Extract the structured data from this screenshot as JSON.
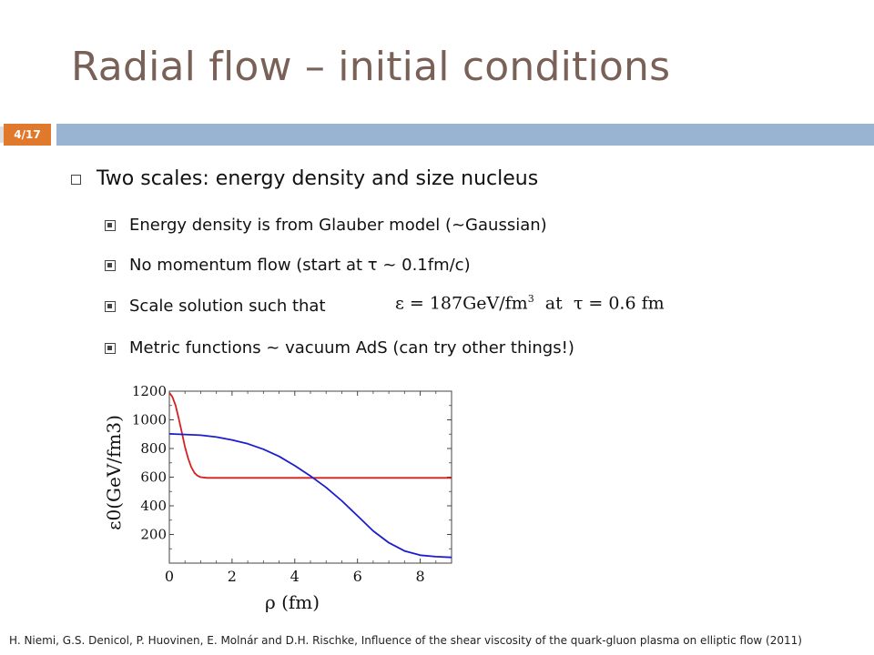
{
  "slide": {
    "title": "Radial flow – initial conditions",
    "page": "4/17",
    "accent_color": "#e0792b",
    "rule_color": "#98b4d2",
    "title_color": "#7a6158"
  },
  "bullets": {
    "main": "Two scales: energy density and size nucleus",
    "sub": [
      "Energy density is from Glauber model (~Gaussian)",
      "No momentum flow (start at τ ~ 0.1fm/c)",
      "Scale solution such that",
      "Metric functions ~ vacuum AdS (can try other things!)"
    ],
    "formula": {
      "lhs": "ε = 187GeV/fm",
      "exp": "3",
      "rhs": "  at  τ = 0.6 fm"
    }
  },
  "chart_data": {
    "type": "line",
    "xlabel": "ρ (fm)",
    "ylabel": "ε0(GeV/fm3)",
    "xlim": [
      0,
      9
    ],
    "ylim": [
      0,
      1200
    ],
    "xticks": [
      0,
      2,
      4,
      6,
      8
    ],
    "yticks": [
      200,
      400,
      600,
      800,
      1000,
      1200
    ],
    "grid": false,
    "series": [
      {
        "color": "#d42020",
        "x": [
          0,
          0.1,
          0.2,
          0.3,
          0.4,
          0.5,
          0.6,
          0.7,
          0.8,
          0.9,
          1.0,
          1.2,
          1.4,
          1.6,
          2,
          3,
          4,
          5,
          6,
          7,
          8,
          9
        ],
        "y": [
          1190,
          1160,
          1100,
          1010,
          910,
          810,
          730,
          670,
          630,
          610,
          600,
          595,
          595,
          595,
          595,
          595,
          595,
          595,
          595,
          595,
          595,
          595
        ]
      },
      {
        "color": "#1c1cd0",
        "x": [
          0,
          0.5,
          1,
          1.5,
          2,
          2.5,
          3,
          3.5,
          4,
          4.5,
          5,
          5.5,
          6,
          6.5,
          7,
          7.5,
          8,
          8.5,
          9
        ],
        "y": [
          902,
          898,
          893,
          880,
          860,
          833,
          795,
          745,
          680,
          608,
          528,
          435,
          330,
          225,
          142,
          85,
          55,
          45,
          40
        ]
      }
    ]
  },
  "footer": "H. Niemi, G.S. Denicol, P. Huovinen, E. Molnár and D.H. Rischke, Influence of the shear viscosity of the quark-gluon plasma on elliptic flow (2011)"
}
